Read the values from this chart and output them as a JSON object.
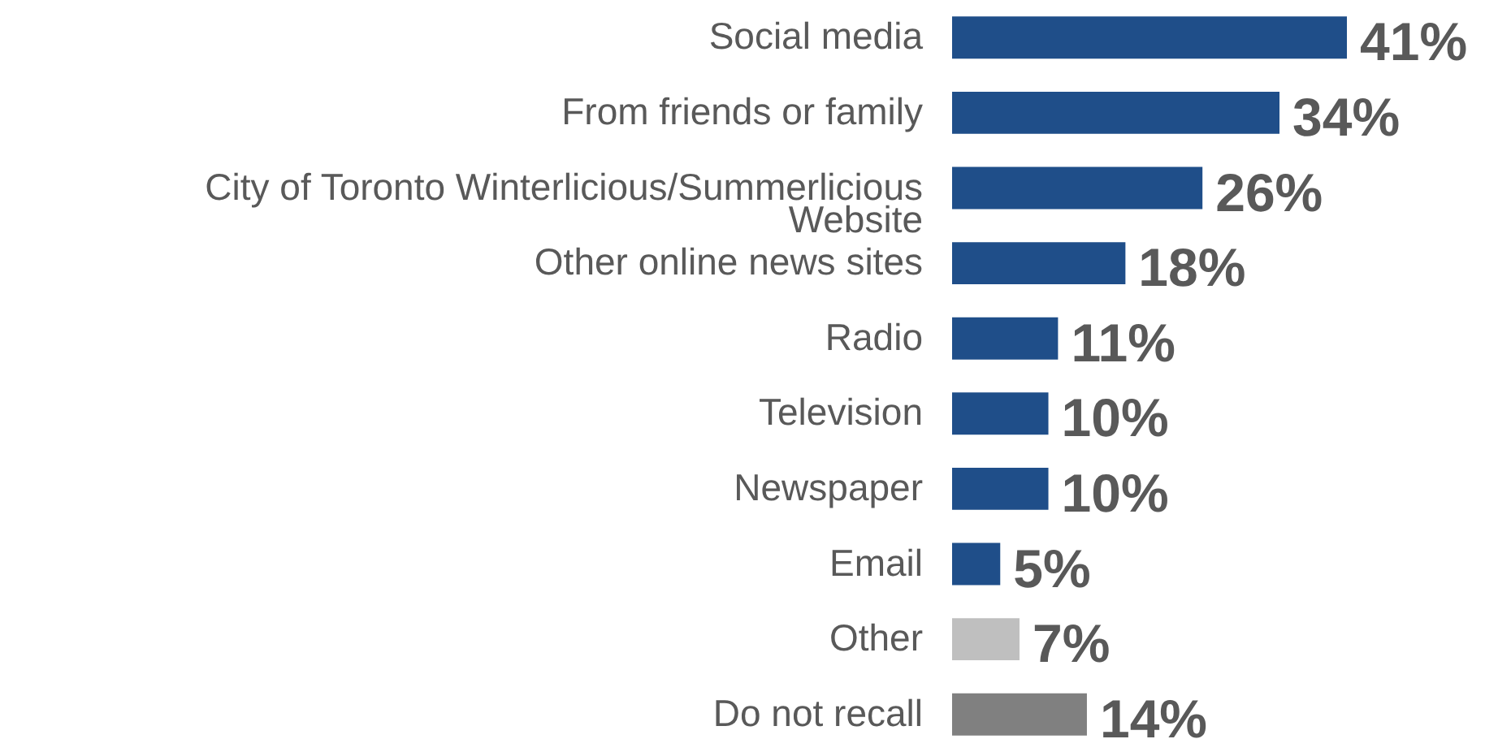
{
  "chart_data": {
    "type": "bar",
    "orientation": "horizontal",
    "categories": [
      "Social media",
      "From friends or family",
      "City of Toronto Winterlicious/Summerlicious Website",
      "Other online news sites",
      "Radio",
      "Television",
      "Newspaper",
      "Email",
      "Other",
      "Do not recall"
    ],
    "values": [
      41,
      34,
      26,
      18,
      11,
      10,
      10,
      5,
      7,
      14
    ],
    "value_labels": [
      "41%",
      "34%",
      "26%",
      "18%",
      "11%",
      "10%",
      "10%",
      "5%",
      "7%",
      "14%"
    ],
    "colors": [
      "#1f4e89",
      "#1f4e89",
      "#1f4e89",
      "#1f4e89",
      "#1f4e89",
      "#1f4e89",
      "#1f4e89",
      "#1f4e89",
      "#bfbfbf",
      "#808080"
    ]
  }
}
